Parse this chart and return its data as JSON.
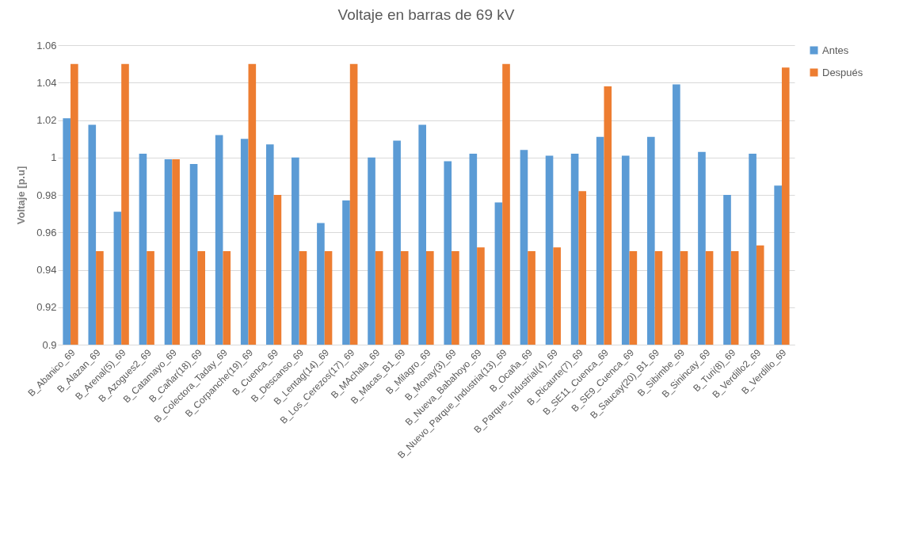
{
  "chart_data": {
    "type": "bar",
    "title": "Voltaje en barras de 69 kV",
    "ylabel": "Voltaje [p.u]",
    "categories": [
      "B_Abanico_69",
      "B_Alazan_69",
      "B_Arenal(5)_69",
      "B_Azogues2_69",
      "B_Catamayo_69",
      "B_Cañar(18)_69",
      "B_Colectora_Taday_69",
      "B_Corpanche(19)_69",
      "B_Cuenca_69",
      "B_Descanso_69",
      "B_Lentag(14)_69",
      "B_Los_Cerezos(17)_69",
      "B_MAchala_69",
      "B_Macas_B1_69",
      "B_Milagro_69",
      "B_Monay(3)_69",
      "B_Nueva_Babahoyo_69",
      "B_Nuevo_Parque_Industria(13)_69",
      "B_Ocaña_69",
      "B_Parque_Industrial(4)_69",
      "B_Ricaurte(7)_69",
      "B_SE11_Cuenca_69",
      "B_SE9_Cuenca_69",
      "B_Saucay(20)_B1_69",
      "B_Sibimbe_69",
      "B_Sinincay_69",
      "B_Turi(8)_69",
      "B_Verdillo2_69",
      "B_Verdillo_69"
    ],
    "series": [
      {
        "name": "Antes",
        "color": "#5b9bd5",
        "values": [
          1.021,
          1.0175,
          0.971,
          1.002,
          0.999,
          0.9965,
          1.012,
          1.01,
          1.007,
          1.0,
          0.965,
          0.977,
          1.0,
          1.009,
          1.0175,
          0.998,
          1.002,
          0.976,
          1.004,
          1.001,
          1.002,
          1.011,
          1.001,
          1.011,
          1.039,
          1.003,
          0.98,
          1.002,
          0.985
        ]
      },
      {
        "name": "Después",
        "color": "#ed7d31",
        "values": [
          1.05,
          0.95,
          1.05,
          0.95,
          0.999,
          0.95,
          0.95,
          1.05,
          0.98,
          0.95,
          0.95,
          1.05,
          0.95,
          0.95,
          0.95,
          0.95,
          0.952,
          1.05,
          0.95,
          0.952,
          0.982,
          1.038,
          0.95,
          0.95,
          0.95,
          0.95,
          0.95,
          0.953,
          1.048
        ]
      }
    ],
    "ylim": [
      0.9,
      1.06
    ],
    "yticks": [
      0.9,
      0.92,
      0.94,
      0.96,
      0.98,
      1,
      1.02,
      1.04,
      1.06
    ],
    "grid": "y",
    "legend": "right"
  }
}
